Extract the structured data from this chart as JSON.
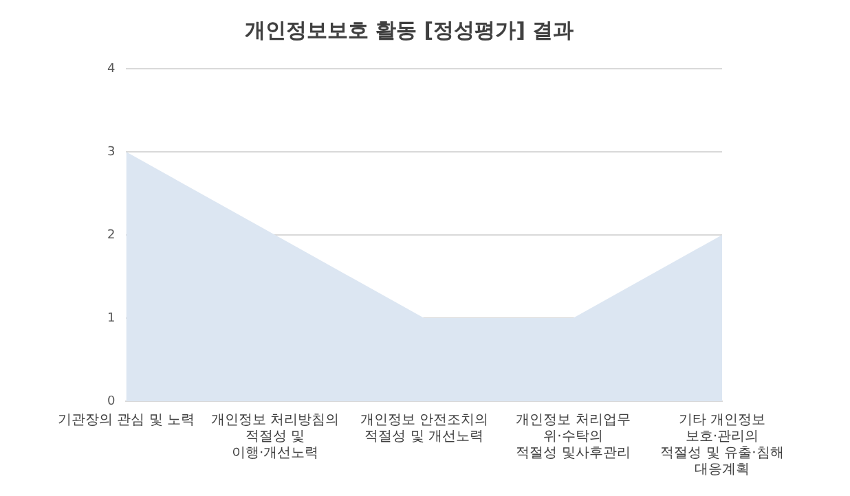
{
  "chart_data": {
    "type": "area",
    "title": "개인정보보호 활동 [정성평가] 결과",
    "categories": [
      "기관장의 관심 및 노력",
      "개인정보 처리방침의\n적절성 및\n이행·개선노력",
      "개인정보 안전조치의\n적절성 및 개선노력",
      "개인정보 처리업무\n위·수탁의\n적절성 및사후관리",
      "기타 개인정보\n보호·관리의\n적절성 및 유출·침해\n대응계획"
    ],
    "series": [
      {
        "color": "#dce6f2",
        "values": [
          3,
          2,
          1,
          1,
          2
        ]
      }
    ],
    "ylim": [
      0,
      4
    ],
    "yticks": [
      0,
      1,
      2,
      3,
      4
    ],
    "grid": "y",
    "legend": false
  }
}
